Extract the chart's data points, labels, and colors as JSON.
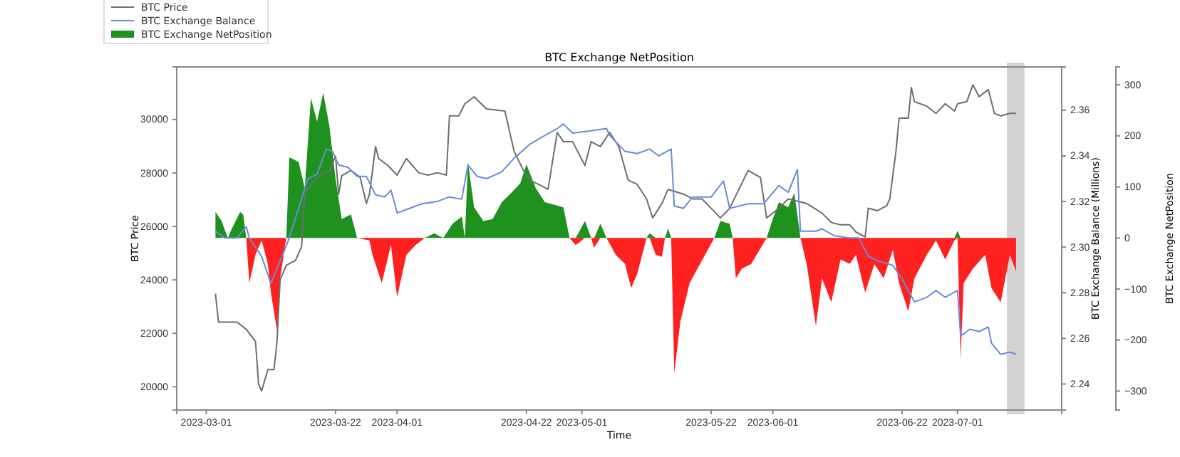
{
  "chart_data": {
    "type": "line",
    "title": "BTC Exchange NetPosition",
    "xlabel": "Time",
    "ylabel": "BTC Price",
    "y2label": "BTC Exchange Balance (Millions)",
    "y3label": "BTC Exchange NetPosition",
    "xlim": [
      "2023-02-24T05:00",
      "2023-07-17T22:00"
    ],
    "xticks": [
      "2023-03-01",
      "2023-03-22",
      "2023-04-01",
      "2023-04-22",
      "2023-05-01",
      "2023-05-22",
      "2023-06-01",
      "2023-06-22",
      "2023-07-01"
    ],
    "ylim": [
      19130,
      31970
    ],
    "yticks": [
      20000,
      22000,
      24000,
      26000,
      28000,
      30000
    ],
    "y2lim": [
      2.2286,
      2.379
    ],
    "y2ticks": [
      {
        "value": 2.24,
        "label": "2.24"
      },
      {
        "value": 2.26,
        "label": "2.26"
      },
      {
        "value": 2.28,
        "label": "2.28"
      },
      {
        "value": 2.3,
        "label": "2.30"
      },
      {
        "value": 2.32,
        "label": "2.32"
      },
      {
        "value": 2.34,
        "label": "2.34"
      },
      {
        "value": 2.36,
        "label": "2.36"
      }
    ],
    "y3lim": [
      -337,
      335
    ],
    "y3ticks": [
      {
        "value": -300,
        "label": "−300"
      },
      {
        "value": -200,
        "label": "−200"
      },
      {
        "value": -100,
        "label": "−100"
      },
      0,
      100,
      200,
      300
    ],
    "legend": "top left",
    "grid": false,
    "marker": "none",
    "line_style": "solid",
    "bands": [
      {
        "axis": "x",
        "from": "2023-07-09T00:00",
        "to": "2023-07-11T21:00",
        "color": "#c8c8c8"
      }
    ],
    "x": [
      "2023-03-02T12:00",
      "2023-03-03T12:00",
      "2023-03-04T12:00",
      "2023-03-05",
      "2023-03-06T12:00",
      "2023-03-07",
      "2023-03-07T12:00",
      "2023-03-08",
      "2023-03-09",
      "2023-03-10",
      "2023-03-11",
      "2023-03-11T12:00",
      "2023-03-12T12:00",
      "2023-03-13",
      "2023-03-14",
      "2023-03-14T12:00",
      "2023-03-16",
      "2023-03-17",
      "2023-03-18",
      "2023-03-19",
      "2023-03-20",
      "2023-03-21",
      "2023-03-22",
      "2023-03-23",
      "2023-03-24T12:00",
      "2023-03-25T12:00",
      "2023-03-27T12:00",
      "2023-03-28",
      "2023-03-29T12:00",
      "2023-03-31",
      "2023-04-01",
      "2023-04-02T12:00",
      "2023-04-04",
      "2023-04-05T12:00",
      "2023-04-07",
      "2023-04-08T12:00",
      "2023-04-10",
      "2023-04-11T12:00",
      "2023-04-12",
      "2023-04-12T12:00",
      "2023-04-13T12:00",
      "2023-04-15",
      "2023-04-16T12:00",
      "2023-04-18",
      "2023-04-19T12:00",
      "2023-04-21",
      "2023-04-22",
      "2023-04-23T12:00",
      "2023-04-25",
      "2023-04-28",
      "2023-04-29",
      "2023-04-30",
      "2023-05-01T12:00",
      "2023-05-02T12:00",
      "2023-05-03",
      "2023-05-04",
      "2023-05-05",
      "2023-05-06T12:00",
      "2023-05-08",
      "2023-05-09",
      "2023-05-10",
      "2023-05-11T12:00",
      "2023-05-12",
      "2023-05-13",
      "2023-05-14",
      "2023-05-14T12:00",
      "2023-05-15",
      "2023-05-15T12:00",
      "2023-05-16",
      "2023-05-17",
      "2023-05-18T12:00",
      "2023-05-21",
      "2023-05-22T12:00",
      "2023-05-23T12:00",
      "2023-05-25",
      "2023-05-25T12:00",
      "2023-05-26",
      "2023-05-27",
      "2023-05-28T12:00",
      "2023-05-31",
      "2023-06-01",
      "2023-06-02",
      "2023-06-03T12:00",
      "2023-06-04T12:00",
      "2023-06-05T12:00",
      "2023-06-06T12:00",
      "2023-06-08",
      "2023-06-09",
      "2023-06-10T12:00",
      "2023-06-12",
      "2023-06-13T12:00",
      "2023-06-14T12:00",
      "2023-06-16",
      "2023-06-17T12:00",
      "2023-06-19",
      "2023-06-20T12:00",
      "2023-06-21T12:00",
      "2023-06-23",
      "2023-06-24",
      "2023-06-26",
      "2023-06-27T12:00",
      "2023-06-29",
      "2023-06-30T12:00",
      "2023-07-01",
      "2023-07-01T12:00",
      "2023-07-02",
      "2023-07-03T12:00",
      "2023-07-05T12:00",
      "2023-07-06T12:00",
      "2023-07-08",
      "2023-07-09T12:00",
      "2023-07-10T12:00"
    ],
    "series": [
      {
        "name": "BTC Exchange NetPosition",
        "type": "area",
        "axis": "y3",
        "color": "#1f911f",
        "values": [
          51,
          33,
          0,
          14,
          51,
          46,
          0,
          0,
          0,
          0,
          0,
          0,
          0,
          0,
          0,
          158,
          149,
          98,
          274,
          228,
          284,
          219,
          116,
          37,
          46,
          0,
          0,
          0,
          0,
          0,
          0,
          0,
          0,
          0,
          9,
          0,
          28,
          42,
          0,
          149,
          60,
          33,
          37,
          70,
          88,
          107,
          144,
          98,
          70,
          60,
          0,
          0,
          33,
          0,
          0,
          28,
          0,
          0,
          0,
          0,
          0,
          0,
          9,
          0,
          0,
          0,
          19,
          0,
          0,
          0,
          0,
          0,
          0,
          33,
          28,
          0,
          0,
          0,
          0,
          0,
          37,
          70,
          60,
          88,
          0,
          0,
          0,
          0,
          0,
          0,
          0,
          0,
          0,
          0,
          0,
          0,
          0,
          0,
          0,
          0,
          0,
          0,
          0,
          14,
          0,
          0,
          0,
          0,
          0,
          0,
          0,
          0
        ]
      },
      {
        "type": "area",
        "axis": "y3",
        "color": "#ff2020",
        "values": [
          0,
          0,
          0,
          0,
          0,
          0,
          0,
          -88,
          -33,
          -5,
          -51,
          -107,
          -181,
          -79,
          0,
          0,
          0,
          0,
          0,
          0,
          0,
          0,
          0,
          0,
          0,
          0,
          -5,
          -33,
          -88,
          -14,
          -116,
          -33,
          -14,
          0,
          0,
          0,
          0,
          0,
          0,
          0,
          0,
          0,
          0,
          0,
          0,
          0,
          0,
          0,
          0,
          0,
          0,
          -14,
          0,
          0,
          -19,
          0,
          0,
          -33,
          -51,
          -98,
          -70,
          0,
          0,
          -33,
          -37,
          0,
          0,
          0,
          -265,
          -163,
          -88,
          -33,
          0,
          0,
          0,
          0,
          -79,
          -60,
          -51,
          0,
          0,
          0,
          0,
          0,
          0,
          -51,
          -172,
          -79,
          -126,
          -42,
          -51,
          -33,
          -107,
          -51,
          -79,
          -23,
          -88,
          -144,
          -79,
          -33,
          -5,
          -42,
          -5,
          0,
          -237,
          -88,
          -60,
          -33,
          -98,
          -126,
          -33,
          -65
        ]
      },
      {
        "name": "BTC Price",
        "color": "#6e6e6e",
        "x": [
          "2023-03-02T12:00",
          "2023-03-03",
          "2023-03-06",
          "2023-03-07T12:00",
          "2023-03-09",
          "2023-03-09T12:00",
          "2023-03-10",
          "2023-03-11",
          "2023-03-12",
          "2023-03-12T12:00",
          "2023-03-13",
          "2023-03-14",
          "2023-03-15T12:00",
          "2023-03-16T12:00",
          "2023-03-17",
          "2023-03-18",
          "2023-03-19T12:00",
          "2023-03-21",
          "2023-03-22",
          "2023-03-22T12:00",
          "2023-03-23",
          "2023-03-24T12:00",
          "2023-03-26",
          "2023-03-27",
          "2023-03-27T12:00",
          "2023-03-28T12:00",
          "2023-03-29",
          "2023-03-30T12:00",
          "2023-04-01",
          "2023-04-02T12:00",
          "2023-04-04T12:00",
          "2023-04-06",
          "2023-04-07T12:00",
          "2023-04-09",
          "2023-04-09T12:00",
          "2023-04-11",
          "2023-04-12",
          "2023-04-13T12:00",
          "2023-04-15T12:00",
          "2023-04-18T12:00",
          "2023-04-20",
          "2023-04-21T12:00",
          "2023-04-22T12:00",
          "2023-04-24",
          "2023-04-25T12:00",
          "2023-04-26T12:00",
          "2023-04-27",
          "2023-04-28",
          "2023-04-29T12:00",
          "2023-05-01T12:00",
          "2023-05-02T12:00",
          "2023-05-04",
          "2023-05-05T12:00",
          "2023-05-07",
          "2023-05-08T12:00",
          "2023-05-10",
          "2023-05-11T12:00",
          "2023-05-12T12:00",
          "2023-05-14",
          "2023-05-15",
          "2023-05-17T12:00",
          "2023-05-19",
          "2023-05-20T12:00",
          "2023-05-22",
          "2023-05-23T12:00",
          "2023-05-25",
          "2023-05-28",
          "2023-05-30",
          "2023-05-31",
          "2023-06-02",
          "2023-06-03T12:00",
          "2023-06-06T12:00",
          "2023-06-09",
          "2023-06-10T12:00",
          "2023-06-12",
          "2023-06-13T12:00",
          "2023-06-14T12:00",
          "2023-06-16",
          "2023-06-16T12:00",
          "2023-06-18",
          "2023-06-19T12:00",
          "2023-06-20",
          "2023-06-21",
          "2023-06-21T12:00",
          "2023-06-23",
          "2023-06-23T12:00",
          "2023-06-24",
          "2023-06-26",
          "2023-06-27T12:00",
          "2023-06-29",
          "2023-06-30T12:00",
          "2023-07-01",
          "2023-07-02T12:00",
          "2023-07-03T12:00",
          "2023-07-04T12:00",
          "2023-07-06",
          "2023-07-07",
          "2023-07-08",
          "2023-07-09T12:00",
          "2023-07-10T12:00"
        ],
        "values": [
          23480,
          22420,
          22420,
          22150,
          21700,
          20100,
          19840,
          20640,
          20640,
          21700,
          24000,
          24550,
          24730,
          25260,
          27200,
          27570,
          27920,
          28100,
          28630,
          27200,
          27900,
          28100,
          27830,
          26860,
          27200,
          28990,
          28540,
          28280,
          27920,
          28540,
          28010,
          27920,
          28010,
          27920,
          30140,
          30140,
          30590,
          30850,
          30400,
          30320,
          28810,
          28100,
          27740,
          27570,
          27390,
          28810,
          29520,
          29170,
          29170,
          28280,
          29170,
          28990,
          29520,
          28990,
          27740,
          27570,
          27030,
          26320,
          26860,
          27390,
          27210,
          27030,
          27030,
          26680,
          26320,
          26680,
          28100,
          27830,
          26320,
          26680,
          27030,
          26860,
          26500,
          26150,
          26060,
          26060,
          25790,
          25610,
          26680,
          26590,
          26770,
          27030,
          28810,
          30050,
          30050,
          31200,
          30670,
          30500,
          30230,
          30590,
          30320,
          30590,
          30670,
          31300,
          30850,
          31120,
          30230,
          30140,
          30230,
          30230
        ]
      },
      {
        "name": "BTC Exchange Balance",
        "axis": "y2",
        "color": "#6a8bd8",
        "x": [
          "2023-03-02T12:00",
          "2023-03-04",
          "2023-03-06",
          "2023-03-07T12:00",
          "2023-03-08",
          "2023-03-08T12:00",
          "2023-03-10",
          "2023-03-11T12:00",
          "2023-03-13",
          "2023-03-14T12:00",
          "2023-03-16",
          "2023-03-17T12:00",
          "2023-03-19",
          "2023-03-20T12:00",
          "2023-03-21T12:00",
          "2023-03-22T12:00",
          "2023-03-24",
          "2023-03-25T12:00",
          "2023-03-27",
          "2023-03-28T12:00",
          "2023-03-30",
          "2023-03-31",
          "2023-04-01",
          "2023-04-03",
          "2023-04-05",
          "2023-04-07T12:00",
          "2023-04-09T12:00",
          "2023-04-11T12:00",
          "2023-04-12T12:00",
          "2023-04-14",
          "2023-04-15T12:00",
          "2023-04-18",
          "2023-04-20",
          "2023-04-22T12:00",
          "2023-04-25",
          "2023-04-27",
          "2023-04-28",
          "2023-04-29T12:00",
          "2023-05-02T12:00",
          "2023-05-05",
          "2023-05-05T12:00",
          "2023-05-08",
          "2023-05-10",
          "2023-05-12",
          "2023-05-13T12:00",
          "2023-05-15T12:00",
          "2023-05-16",
          "2023-05-17T12:00",
          "2023-05-19",
          "2023-05-22",
          "2023-05-24",
          "2023-05-25",
          "2023-05-28",
          "2023-05-30T12:00",
          "2023-06-02",
          "2023-06-03T12:00",
          "2023-06-05",
          "2023-06-05T12:00",
          "2023-06-08",
          "2023-06-09",
          "2023-06-11",
          "2023-06-13T12:00",
          "2023-06-15",
          "2023-06-16T12:00",
          "2023-06-18",
          "2023-06-20T12:00",
          "2023-06-22",
          "2023-06-24",
          "2023-06-26",
          "2023-06-27T12:00",
          "2023-06-29",
          "2023-07-01",
          "2023-07-01T12:00",
          "2023-07-03",
          "2023-07-04T12:00",
          "2023-07-06",
          "2023-07-06T12:00",
          "2023-07-08",
          "2023-07-09T12:00",
          "2023-07-10T12:00"
        ],
        "values": [
          2.307,
          2.304,
          2.304,
          2.309,
          2.304,
          2.302,
          2.296,
          2.284,
          2.294,
          2.304,
          2.317,
          2.33,
          2.332,
          2.343,
          2.342,
          2.336,
          2.335,
          2.331,
          2.331,
          2.323,
          2.322,
          2.325,
          2.315,
          2.317,
          2.319,
          2.32,
          2.322,
          2.321,
          2.336,
          2.331,
          2.33,
          2.333,
          2.339,
          2.345,
          2.349,
          2.352,
          2.354,
          2.35,
          2.351,
          2.352,
          2.349,
          2.342,
          2.341,
          2.343,
          2.34,
          2.343,
          2.318,
          2.317,
          2.322,
          2.322,
          2.329,
          2.317,
          2.319,
          2.319,
          2.327,
          2.324,
          2.334,
          2.307,
          2.307,
          2.308,
          2.305,
          2.304,
          2.304,
          2.296,
          2.294,
          2.292,
          2.286,
          2.276,
          2.278,
          2.281,
          2.278,
          2.281,
          2.261,
          2.264,
          2.263,
          2.265,
          2.258,
          2.253,
          2.254,
          2.253
        ]
      }
    ]
  }
}
